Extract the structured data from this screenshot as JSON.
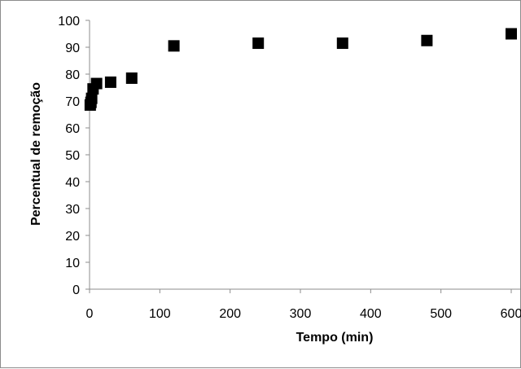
{
  "chart_data": {
    "type": "scatter",
    "title": "",
    "xlabel": "Tempo (min)",
    "ylabel": "Percentual de remoção",
    "xlim": [
      0,
      600
    ],
    "ylim": [
      0,
      100
    ],
    "xticks": [
      0,
      100,
      200,
      300,
      400,
      500,
      600
    ],
    "yticks": [
      0,
      10,
      20,
      30,
      40,
      50,
      60,
      70,
      80,
      90,
      100
    ],
    "grid": false,
    "legend": "none",
    "marker": "square",
    "marker_color": "#000000",
    "series": [
      {
        "x": [
          1,
          2,
          3,
          5,
          10,
          30,
          60,
          120,
          240,
          360,
          480,
          600
        ],
        "y": [
          68.5,
          69.5,
          71,
          74.5,
          76.5,
          77,
          78.5,
          90.5,
          91.5,
          91.5,
          92.5,
          95
        ]
      }
    ]
  }
}
